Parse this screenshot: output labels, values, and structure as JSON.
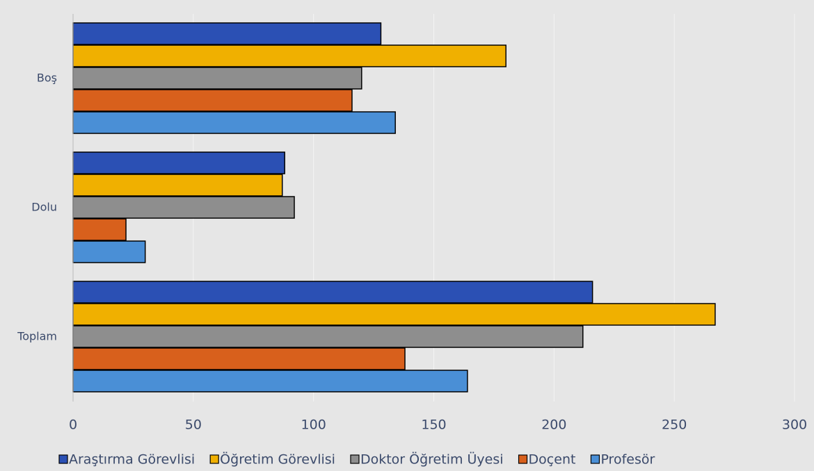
{
  "chart_data": {
    "type": "bar",
    "orientation": "horizontal",
    "categories": [
      "Boş",
      "Dolu",
      "Toplam"
    ],
    "series": [
      {
        "name": "Araştırma Görevlisi",
        "color": "#2b50b4",
        "values": [
          128,
          88,
          216
        ]
      },
      {
        "name": "Öğretim Görevlisi",
        "color": "#f0b000",
        "values": [
          180,
          87,
          267
        ]
      },
      {
        "name": "Doktor Öğretim Üyesi",
        "color": "#8e8e8e",
        "values": [
          120,
          92,
          212
        ]
      },
      {
        "name": "Doçent",
        "color": "#d8601c",
        "values": [
          116,
          22,
          138
        ]
      },
      {
        "name": "Profesör",
        "color": "#4a8fd6",
        "values": [
          134,
          30,
          164
        ]
      }
    ],
    "xlim": [
      0,
      300
    ],
    "xticks": [
      0,
      50,
      100,
      150,
      200,
      250,
      300
    ],
    "grid": true,
    "legend": "bottom"
  }
}
